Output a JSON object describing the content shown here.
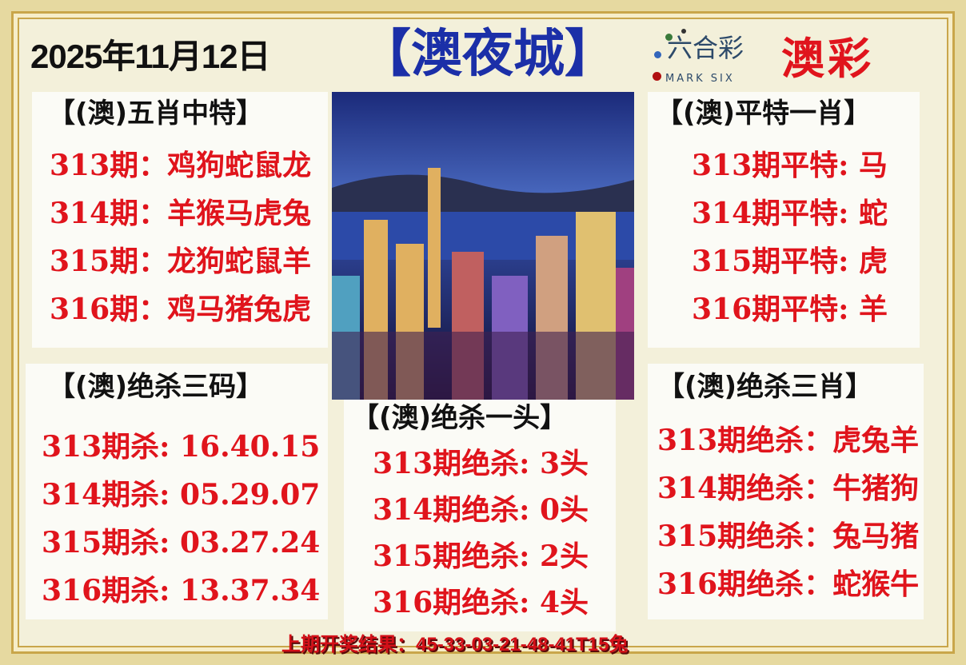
{
  "header": {
    "date": "2025年11月12日",
    "title": "【澳夜城】",
    "logo_cn": "六合彩",
    "logo_en": "MARK SIX",
    "logo_brand": "澳彩"
  },
  "colors": {
    "red": "#e0141c",
    "blue": "#1b2fa8"
  },
  "image": {
    "icon": "city-night-skyline-photo"
  },
  "sections": {
    "five_zodiac": {
      "title": "【(澳)五肖中特】",
      "rows": [
        "313期：鸡狗蛇鼠龙",
        "314期：羊猴马虎兔",
        "315期：龙狗蛇鼠羊",
        "316期：鸡马猪兔虎"
      ]
    },
    "flat_one": {
      "title": "【(澳)平特一肖】",
      "rows": [
        "313期平特:  马",
        "314期平特:  蛇",
        "315期平特:  虎",
        "316期平特:  羊"
      ]
    },
    "kill_three_codes": {
      "title": "【(澳)绝杀三码】",
      "rows": [
        "313期杀: 16.40.15",
        "314期杀: 05.29.07",
        "315期杀: 03.27.24",
        "316期杀: 13.37.34"
      ]
    },
    "kill_one_head": {
      "title": "【(澳)绝杀一头】",
      "rows": [
        "313期绝杀:  3头",
        "314期绝杀:  0头",
        "315期绝杀:  2头",
        "316期绝杀:  4头"
      ]
    },
    "kill_three_zodiac": {
      "title": "【(澳)绝杀三肖】",
      "rows": [
        "313期绝杀：虎兔羊",
        "314期绝杀：牛猪狗",
        "315期绝杀：兔马猪",
        "316期绝杀：蛇猴牛"
      ]
    }
  },
  "footer": {
    "last_result": "上期开奖结果：45-33-03-21-48-41T15兔"
  }
}
